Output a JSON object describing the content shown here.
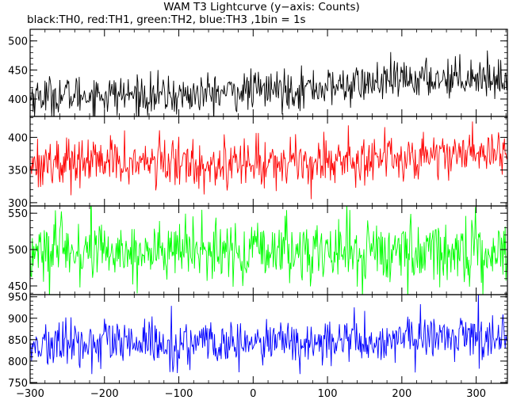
{
  "chart_data": {
    "type": "line",
    "title": "WAM T3 Lightcurve (y−axis: Counts)",
    "subtitle": "black:TH0, red:TH1, green:TH2, blue:TH3 ,1bin = 1s",
    "xlim": [
      -300,
      342
    ],
    "x_ticks": [
      -300,
      -200,
      -100,
      0,
      100,
      200,
      300
    ],
    "x_tick_labels": [
      "−300",
      "−200",
      "−100",
      "0",
      "100",
      "200",
      "300"
    ],
    "bin_seconds": 1,
    "panels": [
      {
        "name": "TH0",
        "color": "#000000",
        "ylim": [
          370,
          520
        ],
        "y_ticks": [
          400,
          450,
          500
        ],
        "mean_profile": [
          [
            -300,
            405
          ],
          [
            -200,
            408
          ],
          [
            -100,
            405
          ],
          [
            0,
            415
          ],
          [
            100,
            420
          ],
          [
            200,
            432
          ],
          [
            300,
            440
          ],
          [
            342,
            432
          ]
        ],
        "noise_sd": 17
      },
      {
        "name": "TH1",
        "color": "#ff0000",
        "ylim": [
          295,
          432
        ],
        "y_ticks": [
          300,
          350,
          400
        ],
        "mean_profile": [
          [
            -300,
            362
          ],
          [
            -200,
            362
          ],
          [
            -100,
            360
          ],
          [
            0,
            360
          ],
          [
            100,
            365
          ],
          [
            200,
            370
          ],
          [
            300,
            378
          ],
          [
            342,
            375
          ]
        ],
        "noise_sd": 19
      },
      {
        "name": "TH2",
        "color": "#00ff00",
        "ylim": [
          438,
          560
        ],
        "y_ticks": [
          450,
          500,
          550
        ],
        "mean_profile": [
          [
            -300,
            496
          ],
          [
            -200,
            498
          ],
          [
            -100,
            497
          ],
          [
            0,
            496
          ],
          [
            100,
            498
          ],
          [
            200,
            497
          ],
          [
            300,
            498
          ],
          [
            342,
            497
          ]
        ],
        "noise_sd": 22
      },
      {
        "name": "TH3",
        "color": "#0000ff",
        "ylim": [
          748,
          955
        ],
        "y_ticks": [
          750,
          800,
          850,
          900,
          950
        ],
        "mean_profile": [
          [
            -300,
            835
          ],
          [
            -200,
            840
          ],
          [
            -100,
            838
          ],
          [
            0,
            840
          ],
          [
            100,
            845
          ],
          [
            200,
            848
          ],
          [
            300,
            862
          ],
          [
            342,
            858
          ]
        ],
        "noise_sd": 27
      }
    ]
  }
}
